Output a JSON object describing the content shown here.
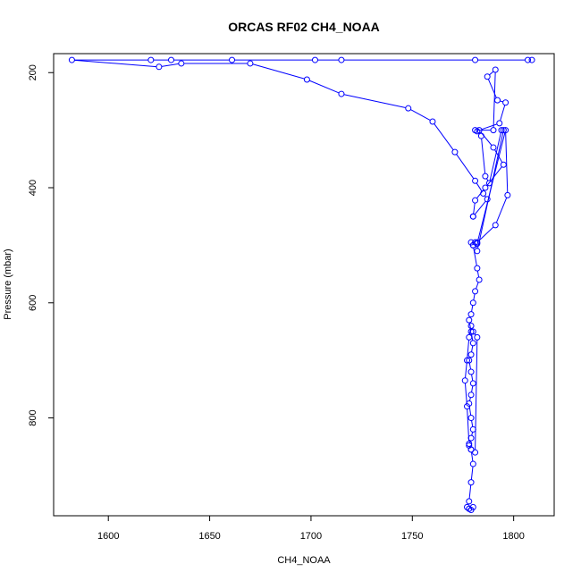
{
  "chart_data": {
    "type": "line",
    "title": "ORCAS RF02 CH4_NOAA",
    "xlabel": "CH4_NOAA",
    "ylabel": "Pressure (mbar)",
    "xlim": [
      1573,
      1820
    ],
    "ylim": [
      970,
      167
    ],
    "y_inverted": true,
    "x_ticks": [
      1600,
      1650,
      1700,
      1750,
      1800
    ],
    "y_ticks": [
      200,
      400,
      600,
      800
    ],
    "grid": false,
    "legend": "none",
    "marker": "open-circle",
    "color": "#0000ff",
    "series": [
      {
        "x": [
          1809,
          1807,
          1781,
          1715,
          1702,
          1661,
          1631,
          1621,
          1582,
          1625,
          1636,
          1670,
          1698,
          1715,
          1748,
          1760,
          1771,
          1781,
          1785,
          1787,
          1780
        ],
        "y": [
          178,
          178,
          178,
          178,
          178,
          178,
          178,
          178,
          178,
          190,
          184,
          184,
          212,
          237,
          262,
          285,
          338,
          388,
          410,
          420,
          450
        ]
      },
      {
        "x": [
          1780,
          1781,
          1786,
          1795,
          1790,
          1783,
          1793,
          1796,
          1792,
          1787,
          1791,
          1790,
          1781,
          1782,
          1784,
          1786,
          1788,
          1794,
          1795,
          1782,
          1781,
          1782,
          1796,
          1797,
          1791,
          1782,
          1779,
          1780
        ],
        "y": [
          450,
          422,
          400,
          360,
          330,
          300,
          288,
          252,
          248,
          207,
          195,
          300,
          300,
          302,
          310,
          380,
          392,
          300,
          300,
          510,
          495,
          497,
          300,
          413,
          465,
          495,
          495,
          500
        ]
      },
      {
        "x": [
          1780,
          1782,
          1783,
          1781,
          1780,
          1779,
          1778,
          1779,
          1780,
          1779,
          1778,
          1779,
          1780,
          1779,
          1778,
          1779,
          1780,
          1779,
          1778,
          1779,
          1781,
          1782,
          1780,
          1779,
          1778,
          1777,
          1776,
          1777,
          1778,
          1779,
          1780,
          1779,
          1778,
          1777,
          1778,
          1779,
          1780
        ],
        "y": [
          500,
          540,
          560,
          580,
          600,
          620,
          630,
          650,
          670,
          690,
          700,
          720,
          740,
          760,
          775,
          800,
          820,
          835,
          848,
          855,
          860,
          660,
          650,
          640,
          660,
          700,
          735,
          780,
          845,
          855,
          880,
          912,
          945,
          955,
          958,
          960,
          955
        ]
      }
    ]
  }
}
